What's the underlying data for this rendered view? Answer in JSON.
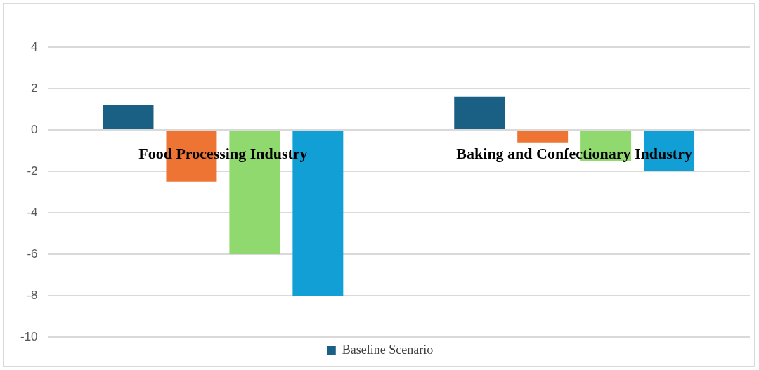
{
  "chart_data": {
    "type": "bar",
    "categories": [
      "Food Processing Industry",
      "Baking and Confectionary Industry"
    ],
    "series": [
      {
        "name": "Baseline Scenario",
        "color": "#1a5f84",
        "values": [
          1.2,
          1.6
        ]
      },
      {
        "color": "#ed7432",
        "values": [
          -2.5,
          -0.6
        ]
      },
      {
        "color": "#8fd96e",
        "values": [
          -6,
          -1.5
        ]
      },
      {
        "color": "#119fd6",
        "values": [
          -8,
          -2
        ]
      }
    ],
    "ylim": [
      -10,
      4
    ],
    "yticks": [
      -10,
      -8,
      -6,
      -4,
      -2,
      0,
      2,
      4
    ],
    "grid": "y",
    "legend": "bottom"
  }
}
